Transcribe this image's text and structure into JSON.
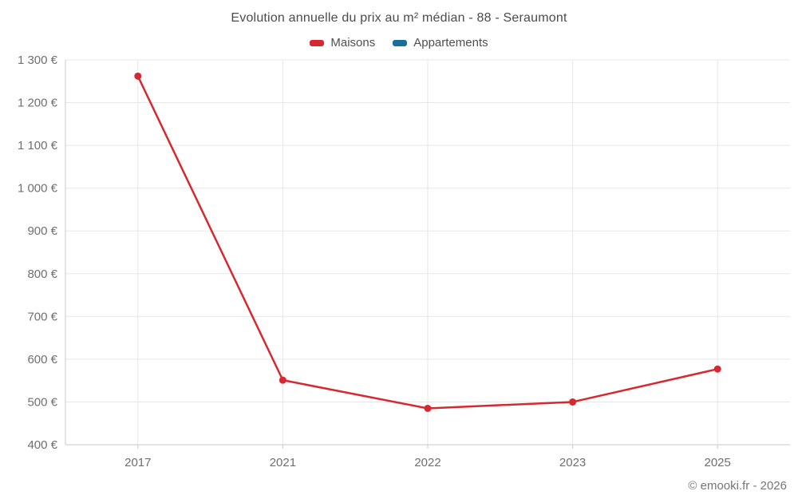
{
  "chart_data": {
    "type": "line",
    "title": "Evolution annuelle du prix au m² médian - 88 - Seraumont",
    "categories": [
      "2017",
      "2021",
      "2022",
      "2023",
      "2025"
    ],
    "series": [
      {
        "name": "Maisons",
        "color": "#d7282f",
        "values": [
          1262,
          551,
          485,
          500,
          577
        ]
      },
      {
        "name": "Appartements",
        "color": "#15719c",
        "values": []
      }
    ],
    "ylim": [
      400,
      1300
    ],
    "ytick_step": 100,
    "ytick_labels": [
      "400 €",
      "500 €",
      "600 €",
      "700 €",
      "800 €",
      "900 €",
      "1 000 €",
      "1 100 €",
      "1 200 €",
      "1 300 €"
    ],
    "grid": true,
    "legend_position": "top",
    "colors": {
      "grid_line": "#e7e7e7",
      "axis_line": "#c9c9c9",
      "tick_label": "#6f6f6f",
      "title_text": "#4b4b4b"
    },
    "footer": "© emooki.fr - 2026"
  }
}
